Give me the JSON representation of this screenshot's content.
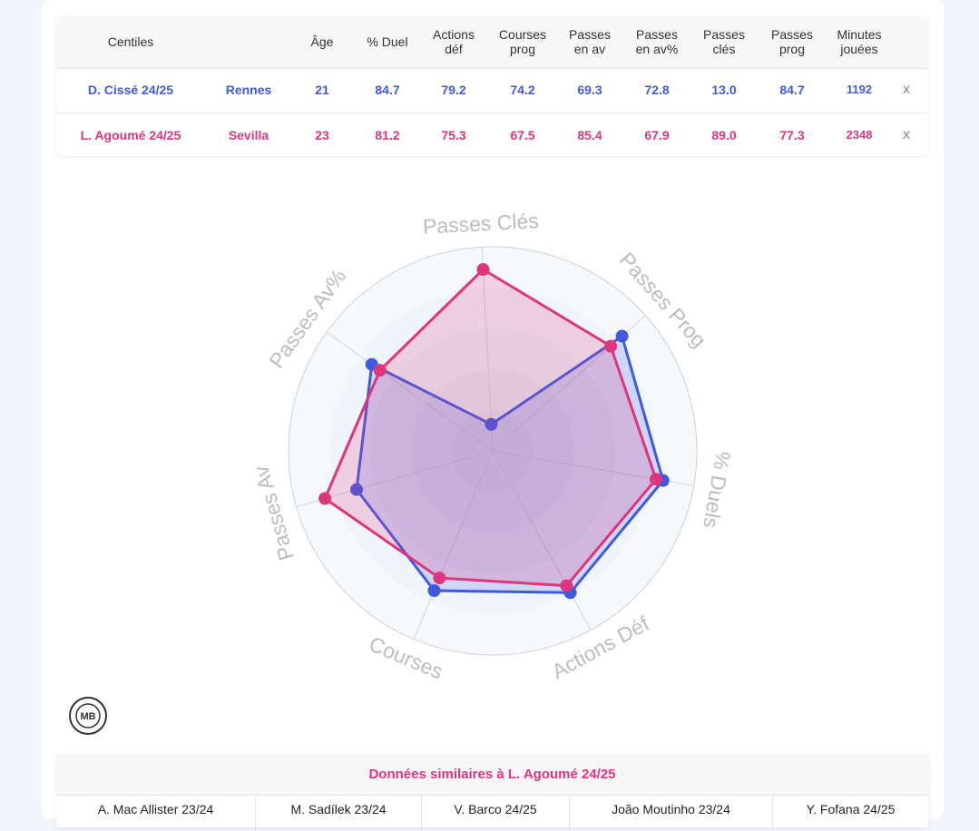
{
  "table": {
    "headers": [
      "Centiles",
      "Âge",
      "% Duel",
      "Actions déf",
      "Courses prog",
      "Passes en av",
      "Passes en av%",
      "Passes clés",
      "Passes prog",
      "Minutes jouées"
    ],
    "rows": [
      {
        "player": "D. Cissé 24/25",
        "team": "Rennes",
        "cells": [
          "21",
          "84.7",
          "79.2",
          "74.2",
          "69.3",
          "72.8",
          "13.0",
          "84.7",
          "1192"
        ],
        "remove": "x"
      },
      {
        "player": "L. Agoumé 24/25",
        "team": "Sevilla",
        "cells": [
          "23",
          "81.2",
          "75.3",
          "67.5",
          "85.4",
          "67.9",
          "89.0",
          "77.3",
          "2348"
        ],
        "remove": "x"
      }
    ]
  },
  "chart_data": {
    "type": "radar",
    "categories": [
      "Passes Clés",
      "Passes Prog",
      "% Duels",
      "Actions Déf",
      "Courses",
      "Passes Av",
      "Passes Av%"
    ],
    "series": [
      {
        "name": "D. Cissé 24/25",
        "color": "#3f5ae0",
        "values": [
          13.0,
          84.7,
          84.7,
          79.2,
          74.2,
          69.3,
          72.8
        ]
      },
      {
        "name": "L. Agoumé 24/25",
        "color": "#e0357d",
        "values": [
          89.0,
          77.3,
          81.2,
          75.3,
          67.5,
          85.4,
          67.9
        ]
      }
    ],
    "rlim": [
      0,
      100
    ],
    "rticks": [
      20,
      40,
      60,
      80,
      100
    ]
  },
  "logo": "MB",
  "similar": {
    "title": "Données similaires à L. Agoumé 24/25",
    "players": [
      "A. Mac Allister 23/24",
      "M. Sadílek 23/24",
      "V. Barco 24/25",
      "João Moutinho 23/24",
      "Y. Fofana 24/25"
    ]
  }
}
